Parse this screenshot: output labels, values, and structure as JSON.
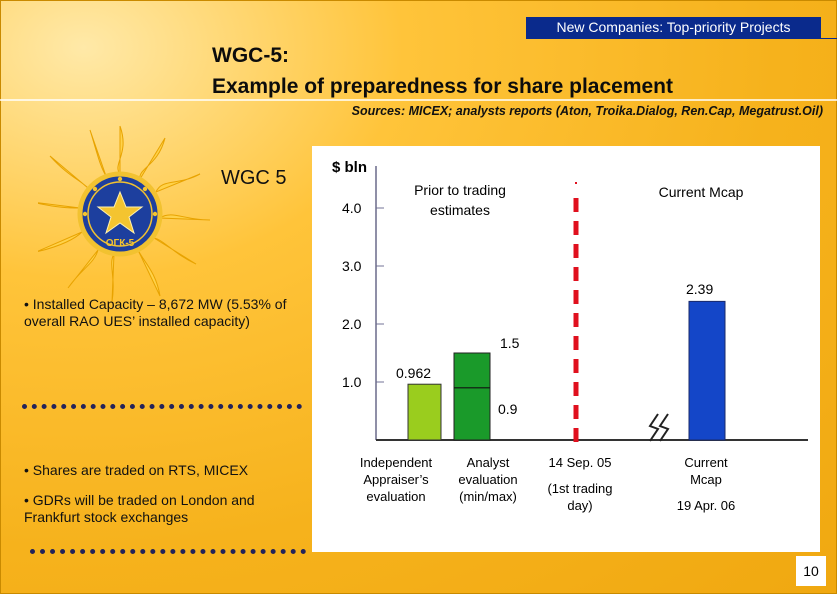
{
  "header": {
    "section_label": "New Companies: Top-priority Projects",
    "title_line1": "WGC-5:",
    "title_line2": "Example of preparedness for share placement",
    "sources": "Sources: MICEX; analysts reports (Aton, Troika.Dialog, Ren.Cap, Megatrust.Oil)"
  },
  "logo": {
    "icon": "ogk-5-star-sun-logo",
    "text": "ОГК-5"
  },
  "company": {
    "name": "WGC 5"
  },
  "bullets": {
    "capacity": "• Installed Capacity – 8,672 MW (5.53% of overall RAO UES’ installed capacity)",
    "rts": "• Shares are traded on RTS, MICEX",
    "gdr": "• GDRs will be traded on London and Frankfurt stock exchanges"
  },
  "colors": {
    "background": "#f6b21c",
    "section_label_bg": "#0a2a8c",
    "independent_bar": "#9acd1e",
    "analyst_bar": "#1a9a2a",
    "current_bar": "#1446c8",
    "separator": "#e0101e"
  },
  "chart_data": {
    "type": "bar",
    "unit": "$ bln",
    "ylim": [
      0,
      4.0
    ],
    "y_ticks": [
      {
        "value": 1.0,
        "label": "1.0"
      },
      {
        "value": 2.0,
        "label": "2.0"
      },
      {
        "value": 3.0,
        "label": "3.0"
      },
      {
        "value": 4.0,
        "label": "4.0"
      }
    ],
    "group_labels": {
      "left": "Prior to trading estimates",
      "right": "Current Mcap"
    },
    "bars": [
      {
        "key": "independent",
        "category": "Independent Appraiser’s evaluation",
        "value": 0.962,
        "value_label": "0.962",
        "color": "#9acd1e"
      },
      {
        "key": "analyst",
        "category": "Analyst evaluation (min/max)",
        "min": 0.9,
        "max": 1.5,
        "min_label": "0.9",
        "max_label": "1.5",
        "color": "#1a9a2a"
      },
      {
        "key": "current",
        "category": "Current Mcap",
        "value": 2.39,
        "value_label": "2.39",
        "color": "#1446c8"
      }
    ],
    "x_labels": [
      {
        "key": "independent",
        "text": "Independent Appraiser’s evaluation"
      },
      {
        "key": "analyst",
        "text": "Analyst evaluation (min/max)"
      },
      {
        "key": "trading_start",
        "text": "14 Sep. 05",
        "sub": "(1st trading day)"
      },
      {
        "key": "current",
        "text": "Current Mcap",
        "sub": "19 Apr. 06"
      }
    ]
  },
  "footer": {
    "page_number": "10"
  }
}
